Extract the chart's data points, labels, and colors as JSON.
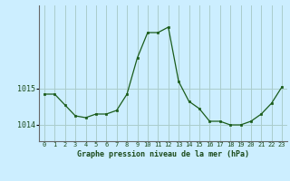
{
  "x": [
    0,
    1,
    2,
    3,
    4,
    5,
    6,
    7,
    8,
    9,
    10,
    11,
    12,
    13,
    14,
    15,
    16,
    17,
    18,
    19,
    20,
    21,
    22,
    23
  ],
  "y": [
    1014.85,
    1014.85,
    1014.55,
    1014.25,
    1014.2,
    1014.3,
    1014.3,
    1014.4,
    1014.85,
    1015.85,
    1016.55,
    1016.55,
    1016.7,
    1015.2,
    1014.65,
    1014.45,
    1014.1,
    1014.1,
    1014.0,
    1014.0,
    1014.1,
    1014.3,
    1014.6,
    1015.05
  ],
  "line_color": "#1a5c1a",
  "marker_color": "#1a5c1a",
  "bg_color": "#cceeff",
  "grid_color": "#aacccc",
  "axis_color": "#666666",
  "title": "Graphe pression niveau de la mer (hPa)",
  "yticks": [
    1014,
    1015
  ],
  "ylim": [
    1013.55,
    1017.3
  ],
  "xlim": [
    -0.5,
    23.5
  ],
  "xtick_labels": [
    "0",
    "1",
    "2",
    "3",
    "4",
    "5",
    "6",
    "7",
    "8",
    "9",
    "10",
    "11",
    "12",
    "13",
    "14",
    "15",
    "16",
    "17",
    "18",
    "19",
    "20",
    "21",
    "22",
    "23"
  ]
}
